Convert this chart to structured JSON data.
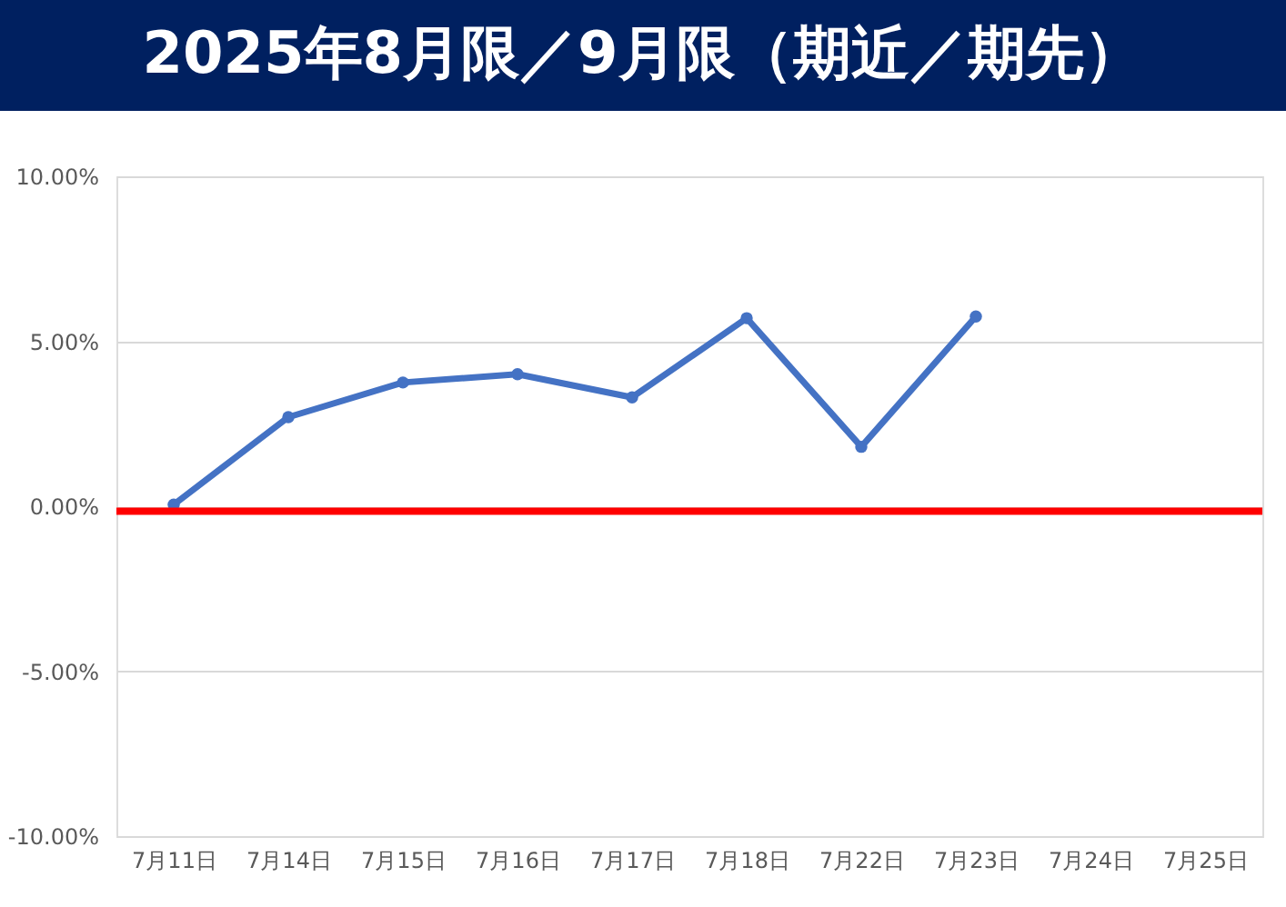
{
  "chart_data": {
    "type": "line",
    "title": "2025年8月限／9月限（期近／期先）",
    "categories": [
      "7月11日",
      "7月14日",
      "7月15日",
      "7月16日",
      "7月17日",
      "7月18日",
      "7月22日",
      "7月23日",
      "7月24日",
      "7月25日"
    ],
    "series": [
      {
        "color": "#4472c4",
        "values": [
          0.05,
          2.7,
          3.75,
          4.0,
          3.3,
          5.7,
          1.8,
          5.75,
          null,
          null
        ]
      }
    ],
    "ylim": [
      -10,
      10
    ],
    "yticks": [
      {
        "value": -10,
        "label": "-10.00%"
      },
      {
        "value": -5,
        "label": "-5.00%"
      },
      {
        "value": 0,
        "label": "0.00%"
      },
      {
        "value": 5,
        "label": "5.00%"
      },
      {
        "value": 10,
        "label": "10.00%"
      }
    ],
    "ref_lines": [
      {
        "axis": "y",
        "value": -0.15,
        "color": "#ff0000",
        "line_style": "solid"
      }
    ],
    "grid": "y",
    "marker": "circle",
    "line_style": "solid"
  }
}
